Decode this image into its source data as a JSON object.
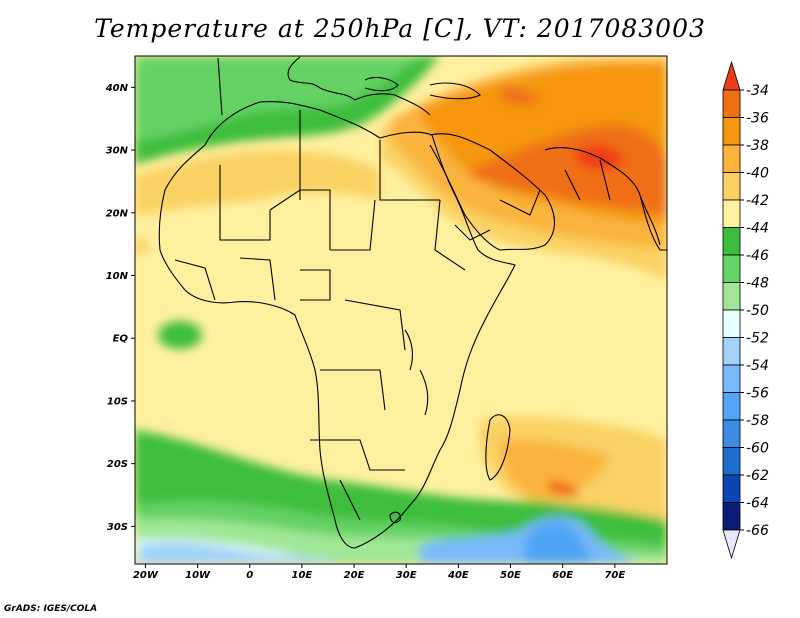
{
  "title": "Temperature at 250hPa [C], VT: 2017083003",
  "credit": "GrADS: IGES/COLA",
  "map": {
    "lon_range": [
      -22,
      80
    ],
    "lat_range": [
      -36,
      45
    ],
    "lat_ticks": [
      {
        "value": 40,
        "label": "40N"
      },
      {
        "value": 30,
        "label": "30N"
      },
      {
        "value": 20,
        "label": "20N"
      },
      {
        "value": 10,
        "label": "10N"
      },
      {
        "value": 0,
        "label": "EQ"
      },
      {
        "value": -10,
        "label": "10S"
      },
      {
        "value": -20,
        "label": "20S"
      },
      {
        "value": -30,
        "label": "30S"
      }
    ],
    "lon_ticks": [
      {
        "value": -20,
        "label": "20W"
      },
      {
        "value": -10,
        "label": "10W"
      },
      {
        "value": 0,
        "label": "0"
      },
      {
        "value": 10,
        "label": "10E"
      },
      {
        "value": 20,
        "label": "20E"
      },
      {
        "value": 30,
        "label": "30E"
      },
      {
        "value": 40,
        "label": "40E"
      },
      {
        "value": 50,
        "label": "50E"
      },
      {
        "value": 60,
        "label": "60E"
      },
      {
        "value": 70,
        "label": "70E"
      }
    ]
  },
  "colorbar": {
    "levels": [
      "-34",
      "-36",
      "-38",
      "-40",
      "-42",
      "-44",
      "-46",
      "-48",
      "-50",
      "-52",
      "-54",
      "-56",
      "-58",
      "-60",
      "-62",
      "-64",
      "-66"
    ],
    "colors": [
      "#f03c14",
      "#f06e14",
      "#f5960f",
      "#fab43c",
      "#fad264",
      "#fff0a0",
      "#3cbe3c",
      "#64d264",
      "#a0e696",
      "#e6ffff",
      "#a0d2fa",
      "#78b9fa",
      "#50a5f5",
      "#3c8ce6",
      "#1e6ed2",
      "#0a46b4",
      "#0a1e78",
      "#e6e6fa"
    ]
  }
}
